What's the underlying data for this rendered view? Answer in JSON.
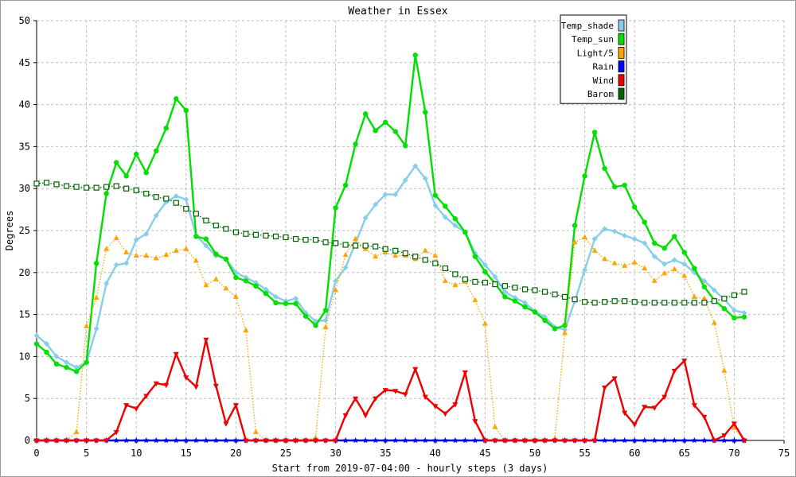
{
  "chart_data": {
    "type": "line",
    "title": "Weather in Essex",
    "xlabel": "Start from 2019-07-04:00 - hourly steps (3 days)",
    "ylabel": "Degrees",
    "xlim": [
      0,
      75
    ],
    "ylim": [
      0,
      50
    ],
    "xticks": [
      0,
      5,
      10,
      15,
      20,
      25,
      30,
      35,
      40,
      45,
      50,
      55,
      60,
      65,
      70,
      75
    ],
    "yticks": [
      0,
      5,
      10,
      15,
      20,
      25,
      30,
      35,
      40,
      45,
      50
    ],
    "grid": true,
    "legend_position": "top-right",
    "series": [
      {
        "name": "Temp_shade",
        "color": "#87ceeb",
        "line": "solid",
        "marker": "diamond",
        "values": [
          12.5,
          11.5,
          10,
          9.3,
          8.7,
          9.3,
          13.3,
          18.7,
          20.9,
          21.1,
          23.9,
          24.6,
          26.8,
          28.4,
          29.1,
          28.7,
          24.4,
          23.2,
          22,
          21.6,
          20,
          19.4,
          18.8,
          18,
          17.1,
          16.6,
          16.9,
          15.2,
          14.2,
          14.3,
          19,
          20.6,
          23.5,
          26.5,
          28.1,
          29.3,
          29.3,
          31,
          32.7,
          31.2,
          28,
          26.6,
          25.6,
          24.8,
          22.3,
          20.9,
          19.5,
          17.7,
          17,
          16.4,
          15.4,
          14.7,
          13.5,
          13.2,
          16.6,
          20.3,
          24,
          25.2,
          24.9,
          24.4,
          24,
          23.5,
          21.9,
          21,
          21.5,
          21,
          20,
          19,
          17.9,
          16.8,
          15.5,
          15.2
        ],
        "x_start": 0
      },
      {
        "name": "Temp_sun",
        "color": "#00e000",
        "line": "solid",
        "marker": "circle",
        "values": [
          11.5,
          10.5,
          9.1,
          8.7,
          8.2,
          9.3,
          21.1,
          29.4,
          33.1,
          31.5,
          34.1,
          31.9,
          34.5,
          37.2,
          40.7,
          39.3,
          24.3,
          24,
          22.2,
          21.6,
          19.4,
          19,
          18.4,
          17.5,
          16.4,
          16.3,
          16.3,
          14.8,
          13.7,
          15.5,
          27.7,
          30.4,
          35.3,
          38.9,
          36.9,
          37.9,
          36.8,
          35.1,
          45.9,
          39.1,
          29.2,
          27.9,
          26.4,
          24.8,
          21.9,
          20.1,
          18.7,
          17.1,
          16.6,
          15.9,
          15.3,
          14.3,
          13.3,
          13.7,
          25.6,
          31.5,
          36.7,
          32.4,
          30.2,
          30.4,
          27.8,
          26,
          23.5,
          22.9,
          24.3,
          22.4,
          20.5,
          18.3,
          16.7,
          15.7,
          14.6,
          14.7
        ],
        "x_start": 0
      },
      {
        "name": "Light/5",
        "color": "#ffa500",
        "line": "dotted",
        "marker": "triangle-up",
        "values": [
          0,
          0,
          0,
          0,
          1,
          13.6,
          17,
          22.8,
          24.1,
          22.4,
          22,
          22,
          21.7,
          22.1,
          22.6,
          22.8,
          21.4,
          18.5,
          19.2,
          18.1,
          17.1,
          13.1,
          1,
          0,
          0,
          0,
          0,
          0,
          0.3,
          13.5,
          17.9,
          22.1,
          24,
          22.8,
          21.9,
          22.4,
          22,
          22,
          21.6,
          22.6,
          22,
          19,
          18.5,
          18.9,
          16.7,
          13.9,
          1.6,
          0,
          0,
          0,
          0,
          0,
          0.2,
          12.8,
          23.6,
          24.2,
          22.6,
          21.6,
          21.1,
          20.8,
          21.2,
          20.5,
          19,
          19.9,
          20.4,
          19.6,
          17.1,
          16.9,
          14,
          8.3,
          1.5,
          0
        ],
        "x_start": 0
      },
      {
        "name": "Rain",
        "color": "#0000ff",
        "line": "solid",
        "marker": "star",
        "values": [
          0,
          0,
          0,
          0,
          0,
          0,
          0,
          0,
          0,
          0,
          0,
          0,
          0,
          0,
          0,
          0,
          0,
          0,
          0,
          0,
          0,
          0,
          0,
          0,
          0,
          0,
          0,
          0,
          0,
          0,
          0,
          0,
          0,
          0,
          0,
          0,
          0,
          0,
          0,
          0,
          0,
          0,
          0,
          0,
          0,
          0,
          0,
          0,
          0,
          0,
          0,
          0,
          0,
          0,
          0,
          0,
          0,
          0,
          0,
          0,
          0,
          0,
          0,
          0,
          0,
          0,
          0,
          0,
          0,
          0,
          0,
          0
        ],
        "x_start": 0
      },
      {
        "name": "Wind",
        "color": "#ee0000",
        "line": "solid",
        "marker": "triangle-down",
        "values": [
          0,
          0,
          0,
          0,
          0,
          0,
          0,
          0,
          1,
          4.2,
          3.8,
          5.3,
          6.8,
          6.6,
          10.3,
          7.5,
          6.4,
          12,
          6.5,
          2,
          4.2,
          0,
          0,
          0,
          0,
          0,
          0,
          0,
          0,
          0,
          0,
          3,
          5,
          3,
          5,
          6,
          5.9,
          5.5,
          8.5,
          5.2,
          4.1,
          3.2,
          4.3,
          8.1,
          2.3,
          0,
          0,
          0,
          0,
          0,
          0,
          0,
          0,
          0,
          0,
          0,
          0,
          6.3,
          7.4,
          3.3,
          1.9,
          4,
          3.9,
          5.2,
          8.3,
          9.5,
          4.2,
          2.8,
          0,
          0.6,
          2,
          0
        ],
        "x_start": 0
      },
      {
        "name": "Barom",
        "color": "#006400",
        "line": "dotted",
        "marker": "square",
        "values": [
          30.6,
          30.7,
          30.5,
          30.3,
          30.2,
          30.1,
          30.1,
          30.2,
          30.3,
          30,
          29.8,
          29.4,
          29,
          28.8,
          28.3,
          27.6,
          27,
          26.2,
          25.6,
          25.2,
          24.8,
          24.6,
          24.5,
          24.4,
          24.3,
          24.2,
          24,
          23.9,
          23.9,
          23.6,
          23.5,
          23.3,
          23.2,
          23.2,
          23.1,
          22.8,
          22.6,
          22.3,
          21.9,
          21.5,
          21.1,
          20.5,
          19.8,
          19.2,
          18.9,
          18.8,
          18.6,
          18.4,
          18.2,
          18,
          17.9,
          17.7,
          17.4,
          17.1,
          16.8,
          16.5,
          16.4,
          16.5,
          16.6,
          16.6,
          16.5,
          16.4,
          16.4,
          16.4,
          16.4,
          16.4,
          16.4,
          16.4,
          16.6,
          16.9,
          17.3,
          17.7
        ],
        "x_start": 0
      }
    ]
  }
}
